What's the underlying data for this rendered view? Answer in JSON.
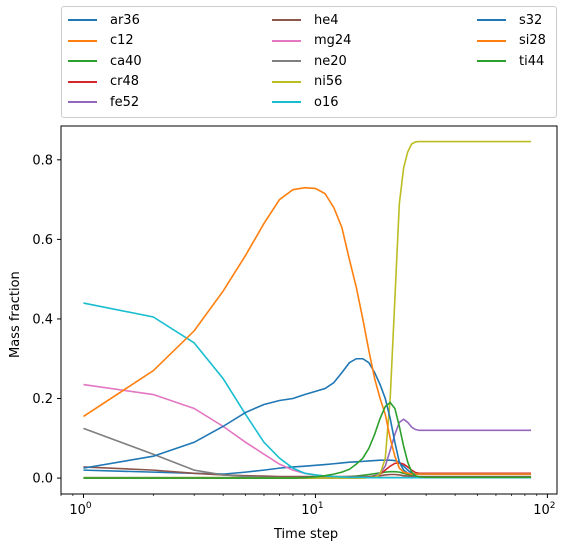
{
  "chart_data": {
    "type": "line",
    "title": "",
    "xlabel": "Time step",
    "ylabel": "Mass fraction",
    "xscale": "log",
    "xlim": [
      0.8,
      110
    ],
    "ylim": [
      -0.04,
      0.885
    ],
    "xticks": [
      {
        "value": 1,
        "label": "10",
        "exp": "0"
      },
      {
        "value": 10,
        "label": "10",
        "exp": "1"
      },
      {
        "value": 100,
        "label": "10",
        "exp": "2"
      }
    ],
    "yticks": [
      0.0,
      0.2,
      0.4,
      0.6,
      0.8
    ],
    "ytick_labels": [
      "0.0",
      "0.2",
      "0.4",
      "0.6",
      "0.8"
    ],
    "grid": false,
    "legend_position": "top, above plot, 3 columns",
    "x": [
      0,
      1,
      2,
      3,
      4,
      5,
      6,
      7,
      8,
      9,
      10,
      11,
      12,
      13,
      14,
      15,
      16,
      17,
      18,
      19,
      20,
      21,
      22,
      23,
      24,
      25,
      26,
      27,
      28,
      30,
      40,
      50,
      60,
      70,
      85
    ],
    "series": [
      {
        "name": "ar36",
        "color": "#1f77b4",
        "values": [
          0.02,
          0.02,
          0.015,
          0.012,
          0.01,
          0.015,
          0.02,
          0.025,
          0.028,
          0.03,
          0.032,
          0.034,
          0.036,
          0.038,
          0.04,
          0.041,
          0.042,
          0.043,
          0.044,
          0.045,
          0.045,
          0.045,
          0.044,
          0.04,
          0.03,
          0.02,
          0.012,
          0.005,
          0.002,
          0.001,
          0.001,
          0.001,
          0.001,
          0.001,
          0.001
        ]
      },
      {
        "name": "c12",
        "color": "#ff7f0e",
        "values": [
          0.001,
          0.001,
          0.001,
          0.001,
          0.001,
          0.001,
          0.001,
          0.001,
          0.001,
          0.001,
          0.001,
          0.001,
          0.001,
          0.001,
          0.001,
          0.001,
          0.001,
          0.001,
          0.001,
          0.001,
          0.001,
          0.001,
          0.001,
          0.001,
          0.001,
          0.001,
          0.001,
          0.001,
          0.001,
          0.001,
          0.001,
          0.001,
          0.001,
          0.001,
          0.001
        ]
      },
      {
        "name": "ca40",
        "color": "#2ca02c",
        "values": [
          0.001,
          0.001,
          0.001,
          0.001,
          0.001,
          0.001,
          0.001,
          0.001,
          0.001,
          0.001,
          0.001,
          0.001,
          0.002,
          0.003,
          0.004,
          0.005,
          0.007,
          0.009,
          0.011,
          0.013,
          0.015,
          0.016,
          0.016,
          0.015,
          0.012,
          0.009,
          0.006,
          0.004,
          0.002,
          0.001,
          0.001,
          0.001,
          0.001,
          0.001,
          0.001
        ]
      },
      {
        "name": "cr48",
        "color": "#d62728",
        "values": [
          0.0,
          0.0,
          0.0,
          0.0,
          0.0,
          0.0,
          0.0,
          0.0,
          0.0,
          0.0,
          0.0,
          0.0,
          0.0,
          0.0,
          0.0,
          0.0,
          0.001,
          0.002,
          0.005,
          0.01,
          0.02,
          0.03,
          0.037,
          0.038,
          0.035,
          0.028,
          0.02,
          0.014,
          0.012,
          0.012,
          0.012,
          0.012,
          0.012,
          0.012,
          0.012
        ]
      },
      {
        "name": "fe52",
        "color": "#9467bd",
        "values": [
          0.0,
          0.0,
          0.0,
          0.0,
          0.0,
          0.0,
          0.0,
          0.0,
          0.0,
          0.0,
          0.0,
          0.0,
          0.0,
          0.0,
          0.0,
          0.0,
          0.001,
          0.003,
          0.006,
          0.012,
          0.03,
          0.07,
          0.11,
          0.14,
          0.148,
          0.14,
          0.128,
          0.122,
          0.12,
          0.12,
          0.12,
          0.12,
          0.12,
          0.12,
          0.12
        ]
      },
      {
        "name": "he4",
        "color": "#8c564b",
        "values": [
          0.03,
          0.028,
          0.02,
          0.012,
          0.008,
          0.006,
          0.005,
          0.004,
          0.004,
          0.004,
          0.004,
          0.004,
          0.004,
          0.004,
          0.004,
          0.004,
          0.004,
          0.004,
          0.005,
          0.006,
          0.008,
          0.009,
          0.009,
          0.008,
          0.006,
          0.005,
          0.004,
          0.004,
          0.004,
          0.004,
          0.004,
          0.004,
          0.004,
          0.004,
          0.004
        ]
      },
      {
        "name": "mg24",
        "color": "#e377c2",
        "values": [
          0.235,
          0.235,
          0.21,
          0.175,
          0.13,
          0.09,
          0.06,
          0.035,
          0.02,
          0.012,
          0.008,
          0.005,
          0.004,
          0.003,
          0.002,
          0.002,
          0.002,
          0.001,
          0.001,
          0.001,
          0.001,
          0.001,
          0.001,
          0.001,
          0.001,
          0.001,
          0.001,
          0.001,
          0.001,
          0.001,
          0.001,
          0.001,
          0.001,
          0.001,
          0.001
        ]
      },
      {
        "name": "ne20",
        "color": "#7f7f7f",
        "values": [
          0.125,
          0.125,
          0.06,
          0.02,
          0.008,
          0.004,
          0.002,
          0.001,
          0.001,
          0.001,
          0.001,
          0.001,
          0.001,
          0.001,
          0.001,
          0.001,
          0.001,
          0.001,
          0.001,
          0.001,
          0.001,
          0.001,
          0.001,
          0.001,
          0.001,
          0.001,
          0.001,
          0.001,
          0.001,
          0.001,
          0.001,
          0.001,
          0.001,
          0.001,
          0.001
        ]
      },
      {
        "name": "ni56",
        "color": "#bcbd22",
        "values": [
          0.0,
          0.0,
          0.0,
          0.0,
          0.0,
          0.0,
          0.0,
          0.0,
          0.0,
          0.0,
          0.0,
          0.0,
          0.0,
          0.0,
          0.0,
          0.0,
          0.0,
          0.001,
          0.002,
          0.01,
          0.05,
          0.2,
          0.45,
          0.69,
          0.78,
          0.82,
          0.84,
          0.845,
          0.846,
          0.846,
          0.846,
          0.846,
          0.846,
          0.846,
          0.846
        ]
      },
      {
        "name": "o16",
        "color": "#17becf",
        "values": [
          0.44,
          0.44,
          0.405,
          0.34,
          0.25,
          0.16,
          0.09,
          0.05,
          0.025,
          0.012,
          0.008,
          0.005,
          0.004,
          0.003,
          0.002,
          0.002,
          0.002,
          0.001,
          0.001,
          0.001,
          0.001,
          0.001,
          0.001,
          0.001,
          0.001,
          0.001,
          0.001,
          0.001,
          0.001,
          0.001,
          0.001,
          0.001,
          0.001,
          0.001,
          0.001
        ]
      },
      {
        "name": "s32",
        "color": "#1f77b4",
        "values": [
          0.025,
          0.025,
          0.055,
          0.09,
          0.13,
          0.165,
          0.185,
          0.195,
          0.2,
          0.21,
          0.218,
          0.225,
          0.24,
          0.265,
          0.29,
          0.3,
          0.3,
          0.29,
          0.265,
          0.235,
          0.2,
          0.15,
          0.09,
          0.04,
          0.02,
          0.012,
          0.01,
          0.01,
          0.01,
          0.01,
          0.01,
          0.01,
          0.01,
          0.01,
          0.01
        ]
      },
      {
        "name": "si28",
        "color": "#ff7f0e",
        "values": [
          0.155,
          0.155,
          0.27,
          0.37,
          0.47,
          0.56,
          0.64,
          0.7,
          0.725,
          0.73,
          0.728,
          0.715,
          0.68,
          0.63,
          0.55,
          0.48,
          0.4,
          0.32,
          0.25,
          0.2,
          0.16,
          0.1,
          0.055,
          0.025,
          0.015,
          0.012,
          0.01,
          0.01,
          0.01,
          0.01,
          0.01,
          0.01,
          0.01,
          0.01,
          0.01
        ]
      },
      {
        "name": "ti44",
        "color": "#2ca02c",
        "values": [
          0.0,
          0.0,
          0.0,
          0.0,
          0.0,
          0.0,
          0.0,
          0.0,
          0.0,
          0.001,
          0.003,
          0.006,
          0.01,
          0.015,
          0.022,
          0.035,
          0.05,
          0.075,
          0.11,
          0.15,
          0.18,
          0.19,
          0.175,
          0.13,
          0.08,
          0.04,
          0.015,
          0.006,
          0.003,
          0.002,
          0.002,
          0.002,
          0.002,
          0.002,
          0.002
        ]
      }
    ]
  }
}
